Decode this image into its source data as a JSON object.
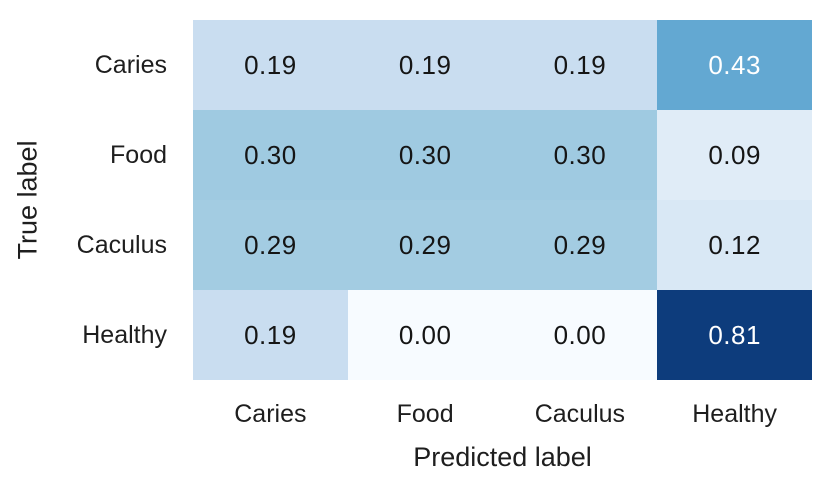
{
  "figure": {
    "background": "#ffffff",
    "text_color": "#1e1e1e"
  },
  "chart_data": {
    "type": "heatmap",
    "title": "",
    "xlabel": "Predicted label",
    "ylabel": "True label",
    "x_categories": [
      "Caries",
      "Food",
      "Caculus",
      "Healthy"
    ],
    "y_categories": [
      "Caries",
      "Food",
      "Caculus",
      "Healthy"
    ],
    "matrix": [
      [
        0.19,
        0.19,
        0.19,
        0.43
      ],
      [
        0.3,
        0.3,
        0.3,
        0.09
      ],
      [
        0.29,
        0.29,
        0.29,
        0.12
      ],
      [
        0.19,
        0.0,
        0.0,
        0.81
      ]
    ],
    "cell_labels": [
      [
        "0.19",
        "0.19",
        "0.19",
        "0.43"
      ],
      [
        "0.30",
        "0.30",
        "0.30",
        "0.09"
      ],
      [
        "0.29",
        "0.29",
        "0.29",
        "0.12"
      ],
      [
        "0.19",
        "0.00",
        "0.00",
        "0.81"
      ]
    ],
    "cell_colors": [
      [
        "#c9ddf0",
        "#c9ddf0",
        "#c9ddf0",
        "#63a8d2"
      ],
      [
        "#9fcae1",
        "#9fcae1",
        "#9fcae1",
        "#e0ecf7"
      ],
      [
        "#a3cce2",
        "#a3cce2",
        "#a3cce2",
        "#d9e8f5"
      ],
      [
        "#c9ddf0",
        "#f7fbff",
        "#f7fbff",
        "#0d3c7c"
      ]
    ],
    "cell_text_colors": [
      [
        "#151515",
        "#151515",
        "#151515",
        "#ffffff"
      ],
      [
        "#151515",
        "#151515",
        "#151515",
        "#151515"
      ],
      [
        "#151515",
        "#151515",
        "#151515",
        "#151515"
      ],
      [
        "#151515",
        "#151515",
        "#151515",
        "#ffffff"
      ]
    ],
    "colormap": "Blues",
    "vmin": 0,
    "vmax": 0.81,
    "grid": false,
    "legend": "none"
  }
}
